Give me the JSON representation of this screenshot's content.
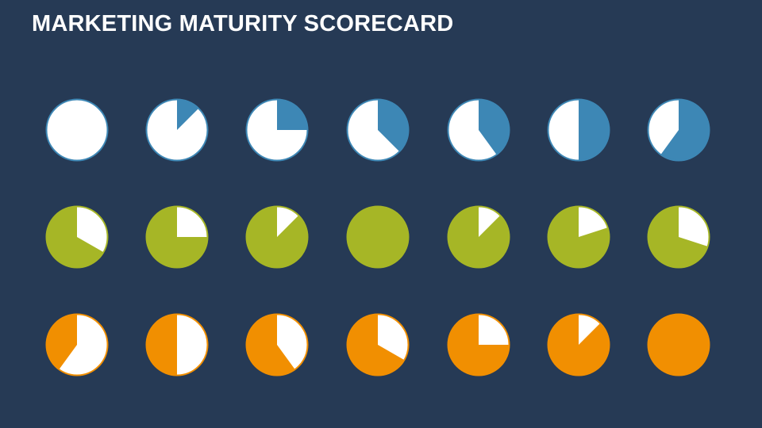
{
  "slide": {
    "title": "MARKETING MATURITY SCORECARD",
    "background": "#263a55"
  },
  "chart_data": {
    "type": "pie",
    "fill_direction": "clockwise from 12 o'clock",
    "empty_color": "#ffffff",
    "rows": [
      {
        "color": "#3d87b5",
        "fills": [
          0,
          0.125,
          0.25,
          0.375,
          0.4,
          0.5,
          0.6
        ],
        "fill_side": "filled wedge colored"
      },
      {
        "color": "#a6b626",
        "fills": [
          0.667,
          0.75,
          0.875,
          1.0,
          0.875,
          0.8,
          0.7
        ],
        "fill_side": "wedge from 12 o'clock is white, remainder colored"
      },
      {
        "color": "#f18f01",
        "fills": [
          0.4,
          0.5,
          0.6,
          0.667,
          0.75,
          0.875,
          1.0
        ],
        "fill_side": "wedge from 12 o'clock is white, remainder colored"
      }
    ]
  }
}
